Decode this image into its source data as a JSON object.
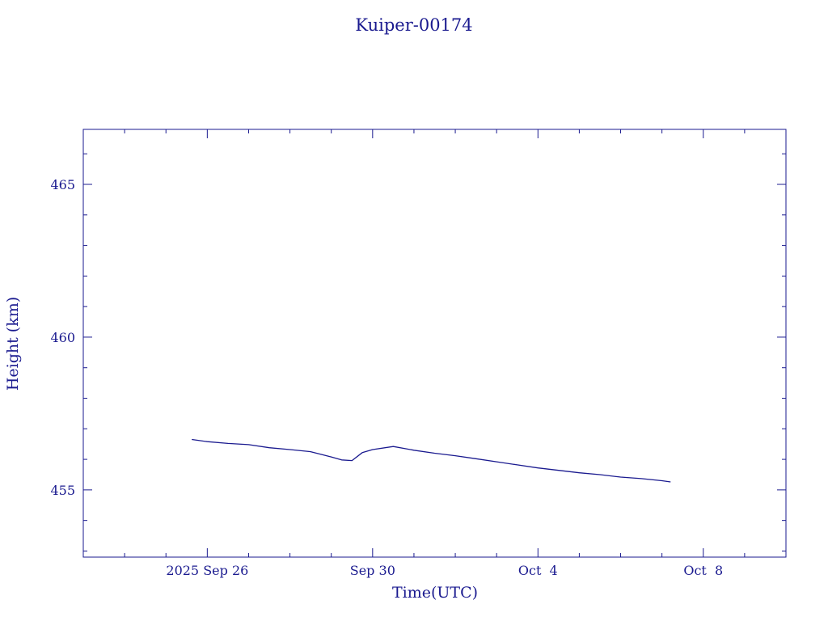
{
  "colors": {
    "ink": "#1a1a8f",
    "background": "#ffffff"
  },
  "chart_data": {
    "type": "line",
    "title": "Kuiper-00174",
    "xlabel": "Time(UTC)",
    "ylabel": "Height (km)",
    "xlim": [
      "2025-09-23T00:00",
      "2025-10-10T00:00"
    ],
    "ylim": [
      452.8,
      466.8
    ],
    "x_ticks": [
      {
        "date": "2025-09-26",
        "label": "2025 Sep 26"
      },
      {
        "date": "2025-09-30",
        "label": "Sep 30"
      },
      {
        "date": "2025-10-04",
        "label": "Oct  4"
      },
      {
        "date": "2025-10-08",
        "label": "Oct  8"
      }
    ],
    "y_ticks": [
      {
        "value": 455,
        "label": "455"
      },
      {
        "value": 460,
        "label": "460"
      },
      {
        "value": 465,
        "label": "465"
      }
    ],
    "grid": false,
    "series": [
      {
        "x": [
          "2025-09-25T15:00",
          "2025-09-26T00:00",
          "2025-09-26T12:00",
          "2025-09-27T00:00",
          "2025-09-27T12:00",
          "2025-09-28T00:00",
          "2025-09-28T12:00",
          "2025-09-29T00:00",
          "2025-09-29T06:00",
          "2025-09-29T12:00",
          "2025-09-29T18:00",
          "2025-09-30T00:00",
          "2025-09-30T12:00",
          "2025-10-01T00:00",
          "2025-10-01T12:00",
          "2025-10-02T00:00",
          "2025-10-02T12:00",
          "2025-10-03T00:00",
          "2025-10-03T12:00",
          "2025-10-04T00:00",
          "2025-10-04T12:00",
          "2025-10-05T00:00",
          "2025-10-05T12:00",
          "2025-10-06T00:00",
          "2025-10-06T12:00",
          "2025-10-07T00:00",
          "2025-10-07T05:00"
        ],
        "y": [
          456.65,
          456.58,
          456.52,
          456.48,
          456.38,
          456.32,
          456.25,
          456.08,
          455.98,
          455.96,
          456.22,
          456.32,
          456.42,
          456.3,
          456.2,
          456.12,
          456.02,
          455.92,
          455.82,
          455.72,
          455.64,
          455.56,
          455.5,
          455.42,
          455.37,
          455.3,
          455.26
        ]
      }
    ]
  }
}
